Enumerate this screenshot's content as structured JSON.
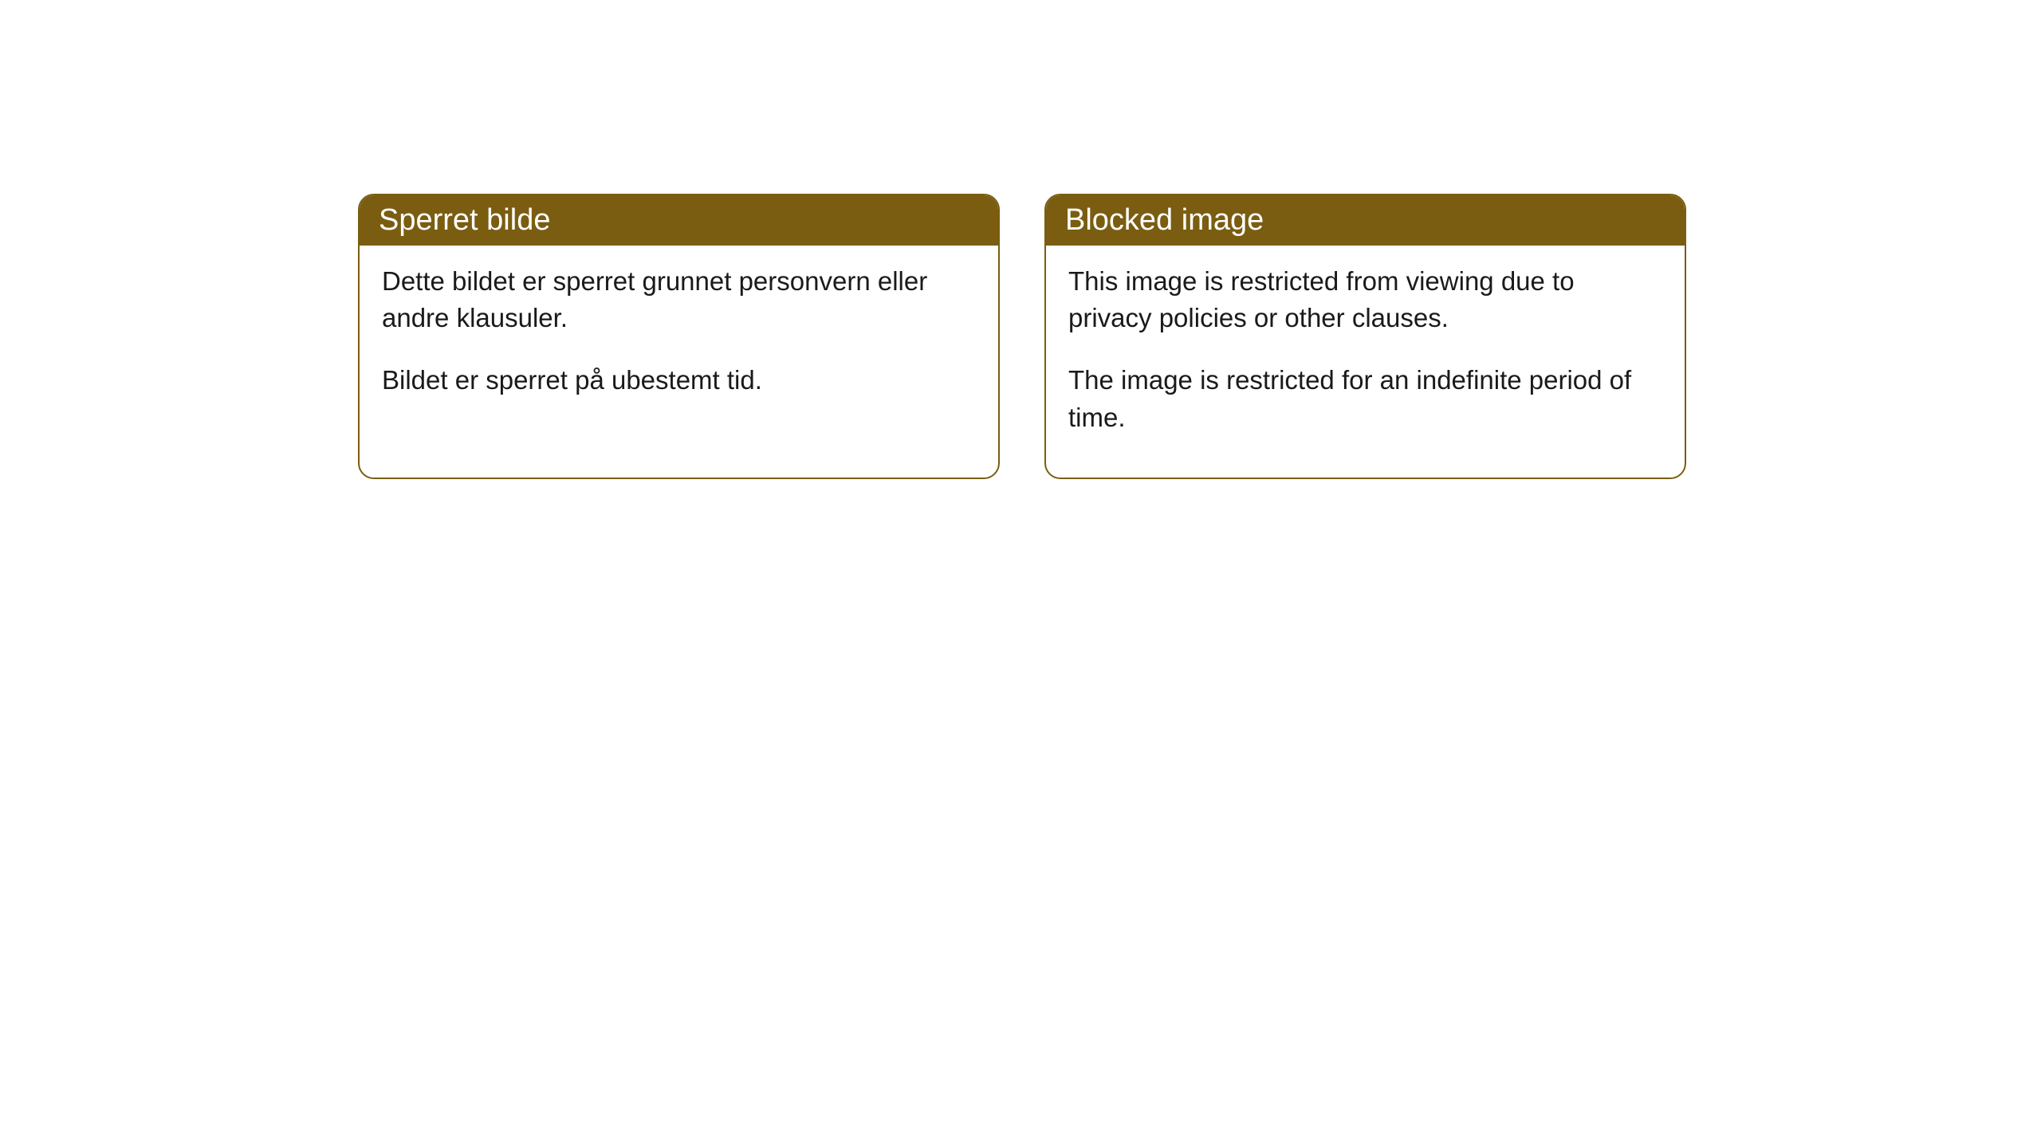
{
  "cards": [
    {
      "title": "Sperret bilde",
      "paragraph1": "Dette bildet er sperret grunnet personvern eller andre klausuler.",
      "paragraph2": "Bildet er sperret på ubestemt tid."
    },
    {
      "title": "Blocked image",
      "paragraph1": "This image is restricted from viewing due to privacy policies or other clauses.",
      "paragraph2": "The image is restricted for an indefinite period of time."
    }
  ],
  "styling": {
    "header_background": "#7a5d11",
    "header_text_color": "#ffffff",
    "card_border_color": "#7a5d11",
    "card_background": "#ffffff",
    "body_text_color": "#1a1a1a",
    "border_radius": 20,
    "header_fontsize": 38,
    "body_fontsize": 33
  }
}
